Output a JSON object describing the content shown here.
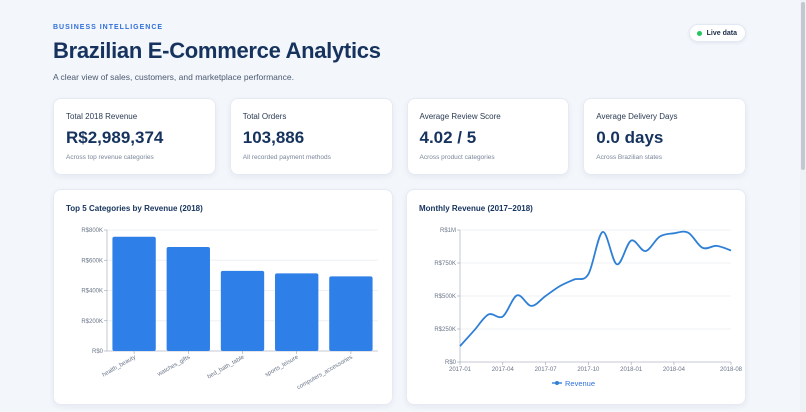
{
  "header": {
    "eyebrow": "BUSINESS INTELLIGENCE",
    "title": "Brazilian E-Commerce Analytics",
    "subtitle": "A clear view of sales, customers, and marketplace performance.",
    "live_label": "Live data"
  },
  "kpis": [
    {
      "label": "Total 2018 Revenue",
      "value": "R$2,989,374",
      "note": "Across top revenue categories"
    },
    {
      "label": "Total Orders",
      "value": "103,886",
      "note": "All recorded payment methods"
    },
    {
      "label": "Average Review Score",
      "value": "4.02 / 5",
      "note": "Across product categories"
    },
    {
      "label": "Average Delivery Days",
      "value": "0.0 days",
      "note": "Across Brazilian states"
    }
  ],
  "colors": {
    "accent": "#2f7fe8",
    "line": "#2e7fd6",
    "live_dot": "#22c55e"
  },
  "chart_data": [
    {
      "type": "bar",
      "title": "Top 5 Categories by Revenue (2018)",
      "categories": [
        "health_beauty",
        "watches_gifts",
        "bed_bath_table",
        "sports_leisure",
        "computers_accessories"
      ],
      "values": [
        755000,
        688000,
        530000,
        513000,
        493000
      ],
      "ylim": [
        0,
        800000
      ],
      "yticks": [
        0,
        200000,
        400000,
        600000,
        800000
      ],
      "ytick_labels": [
        "R$0",
        "R$200K",
        "R$400K",
        "R$600K",
        "R$800K"
      ],
      "grid": true,
      "legend": false
    },
    {
      "type": "line",
      "title": "Monthly Revenue (2017–2018)",
      "x": [
        "2017-01",
        "2017-02",
        "2017-03",
        "2017-04",
        "2017-05",
        "2017-06",
        "2017-07",
        "2017-08",
        "2017-09",
        "2017-10",
        "2017-11",
        "2017-12",
        "2018-01",
        "2018-02",
        "2018-03",
        "2018-04",
        "2018-05",
        "2018-06",
        "2018-07",
        "2018-08"
      ],
      "xtick_labels": [
        "2017-01",
        "2017-04",
        "2017-07",
        "2017-10",
        "2018-01",
        "2018-04",
        "2018-08"
      ],
      "series": [
        {
          "name": "Revenue",
          "values": [
            120000,
            240000,
            360000,
            345000,
            505000,
            425000,
            500000,
            575000,
            625000,
            665000,
            985000,
            740000,
            920000,
            840000,
            950000,
            975000,
            980000,
            865000,
            880000,
            845000
          ]
        }
      ],
      "ylim": [
        0,
        1000000
      ],
      "yticks": [
        0,
        250000,
        500000,
        750000,
        1000000
      ],
      "ytick_labels": [
        "R$0",
        "R$250K",
        "R$500K",
        "R$750K",
        "R$1M"
      ],
      "grid": true,
      "legend": "bottom-center"
    }
  ]
}
